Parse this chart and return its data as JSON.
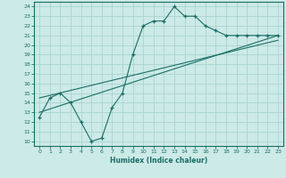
{
  "xlabel": "Humidex (Indice chaleur)",
  "ylabel": "",
  "bg_color": "#cceae7",
  "line_color": "#1a6e66",
  "grid_color": "#aad4d0",
  "xlim": [
    -0.5,
    23.5
  ],
  "ylim": [
    9.5,
    24.5
  ],
  "xticks": [
    0,
    1,
    2,
    3,
    4,
    5,
    6,
    7,
    8,
    9,
    10,
    11,
    12,
    13,
    14,
    15,
    16,
    17,
    18,
    19,
    20,
    21,
    22,
    23
  ],
  "yticks": [
    10,
    11,
    12,
    13,
    14,
    15,
    16,
    17,
    18,
    19,
    20,
    21,
    22,
    23,
    24
  ],
  "line1_x": [
    0,
    1,
    2,
    3,
    4,
    5,
    6,
    7,
    8,
    9,
    10,
    11,
    12,
    13,
    14,
    15,
    16,
    17,
    18,
    19,
    20,
    21,
    22,
    23
  ],
  "line1_y": [
    12.5,
    14.5,
    15.0,
    14.0,
    12.0,
    10.0,
    10.3,
    13.5,
    15.0,
    19.0,
    22.0,
    22.5,
    22.5,
    24.0,
    23.0,
    23.0,
    22.0,
    21.5,
    21.0,
    21.0,
    21.0,
    21.0,
    21.0,
    21.0
  ],
  "line2_x": [
    0,
    23
  ],
  "line2_y": [
    13.0,
    21.0
  ],
  "line3_x": [
    0,
    23
  ],
  "line3_y": [
    14.5,
    20.5
  ]
}
